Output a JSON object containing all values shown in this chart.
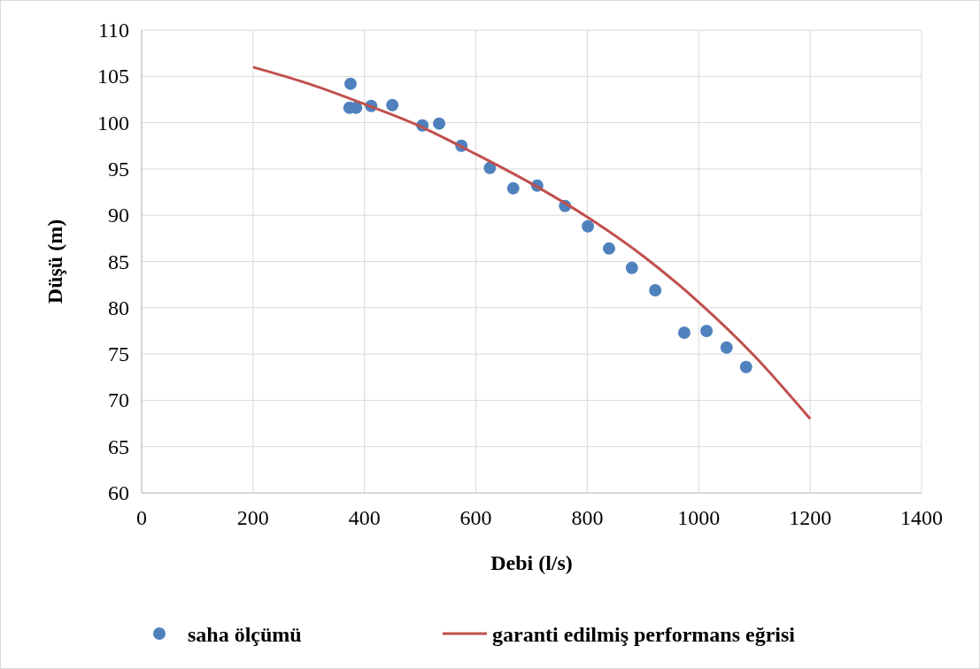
{
  "chart_data": {
    "type": "scatter",
    "xlabel": "Debi (l/s)",
    "ylabel": "Düşü (m)",
    "xlim": [
      0,
      1400
    ],
    "xticks": [
      0,
      200,
      400,
      600,
      800,
      1000,
      1200,
      1400
    ],
    "ylim": [
      60,
      110
    ],
    "yticks": [
      60,
      65,
      70,
      75,
      80,
      85,
      90,
      95,
      100,
      105,
      110
    ],
    "grid": true,
    "legend": "bottom",
    "series": [
      {
        "name": "saha ölçümü",
        "marker": "circle",
        "color": "#4f81bd",
        "x": [
          375,
          373,
          385,
          412,
          450,
          504,
          534,
          574,
          625,
          667,
          710,
          760,
          801,
          839,
          880,
          922,
          974,
          1014,
          1050,
          1085
        ],
        "values": [
          104.2,
          101.6,
          101.6,
          101.8,
          101.9,
          99.7,
          99.9,
          97.5,
          95.1,
          92.9,
          93.2,
          91.0,
          88.8,
          86.4,
          84.3,
          81.9,
          77.3,
          77.5,
          75.7,
          73.6
        ]
      },
      {
        "name": "garanti edilmiş performans eğrisi",
        "type": "line",
        "marker": "none",
        "color": "#c0504d",
        "x": [
          200,
          300,
          400,
          500,
          600,
          700,
          800,
          900,
          1000,
          1100,
          1200
        ],
        "values": [
          106,
          104.2,
          102,
          99.6,
          96.6,
          93.4,
          89.8,
          85.6,
          80.6,
          74.8,
          68
        ]
      }
    ]
  }
}
